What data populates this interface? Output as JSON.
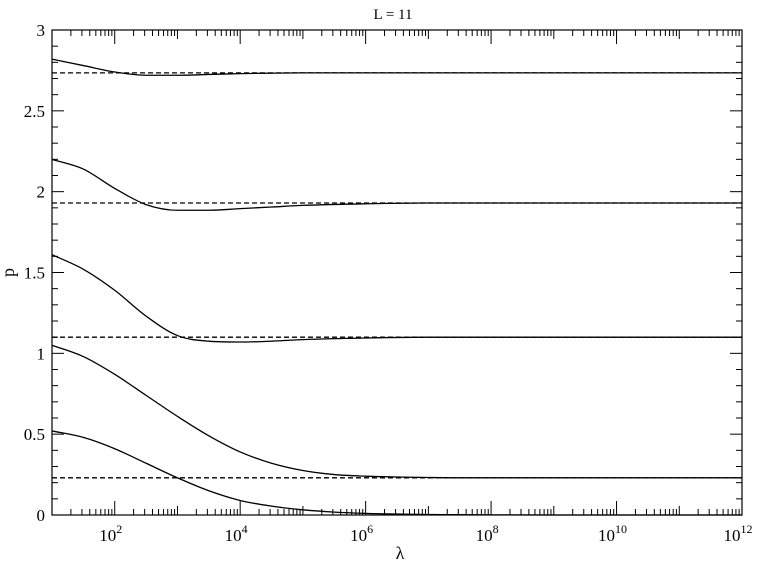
{
  "chart_data": {
    "type": "line",
    "title": "L = 11",
    "xlabel": "λ",
    "ylabel": "p",
    "xscale": "log10",
    "xlim_exponent": [
      1,
      12
    ],
    "ylim": [
      0,
      3
    ],
    "x_tick_exponents": [
      2,
      4,
      6,
      8,
      10,
      12
    ],
    "x_tick_base": "10",
    "y_ticks": [
      0,
      0.5,
      1,
      1.5,
      2,
      2.5,
      3
    ],
    "y_tick_labels": [
      "0",
      "0.5",
      "1",
      "1.5",
      "2",
      "2.5",
      "3"
    ],
    "grid": false,
    "legend": "none",
    "colors": {
      "line": "#000000",
      "background": "#ffffff"
    },
    "series": [
      {
        "style": "solid",
        "x_exponent": [
          1,
          1.5,
          2,
          2.5,
          3,
          3.5,
          4,
          4.5,
          5,
          5.5,
          6,
          6.5,
          7,
          7.5,
          8,
          9,
          10,
          11,
          12
        ],
        "values": [
          0.52,
          0.48,
          0.41,
          0.32,
          0.23,
          0.15,
          0.09,
          0.055,
          0.032,
          0.018,
          0.01,
          0.006,
          0.003,
          0.002,
          0.001,
          0,
          0,
          0,
          0
        ]
      },
      {
        "style": "solid",
        "x_exponent": [
          1,
          1.5,
          2,
          2.5,
          3,
          3.5,
          4,
          4.5,
          5,
          5.5,
          6,
          6.5,
          7,
          7.5,
          8,
          9,
          10,
          11,
          12
        ],
        "values": [
          1.05,
          0.98,
          0.87,
          0.74,
          0.61,
          0.49,
          0.39,
          0.32,
          0.275,
          0.25,
          0.24,
          0.235,
          0.232,
          0.23,
          0.23,
          0.23,
          0.23,
          0.23,
          0.23
        ]
      },
      {
        "style": "solid",
        "x_exponent": [
          1,
          1.5,
          2,
          2.5,
          3,
          3.5,
          4,
          4.5,
          5,
          6,
          7,
          8,
          9,
          10,
          11,
          12
        ],
        "values": [
          1.61,
          1.52,
          1.39,
          1.23,
          1.11,
          1.075,
          1.07,
          1.075,
          1.085,
          1.095,
          1.1,
          1.1,
          1.1,
          1.1,
          1.1,
          1.1
        ]
      },
      {
        "style": "solid",
        "x_exponent": [
          1,
          1.5,
          2,
          2.5,
          3,
          3.5,
          4,
          4.5,
          5,
          6,
          7,
          8,
          9,
          10,
          11,
          12
        ],
        "values": [
          2.2,
          2.14,
          2.02,
          1.92,
          1.885,
          1.885,
          1.895,
          1.905,
          1.915,
          1.925,
          1.93,
          1.93,
          1.93,
          1.93,
          1.93,
          1.93
        ]
      },
      {
        "style": "solid",
        "x_exponent": [
          1,
          1.5,
          2,
          2.5,
          3,
          3.5,
          4,
          5,
          6,
          7,
          8,
          9,
          10,
          11,
          12
        ],
        "values": [
          2.82,
          2.78,
          2.74,
          2.72,
          2.72,
          2.725,
          2.73,
          2.735,
          2.735,
          2.735,
          2.735,
          2.735,
          2.735,
          2.735,
          2.735
        ]
      },
      {
        "style": "dashed",
        "x_exponent": [
          1,
          12
        ],
        "values": [
          0.23,
          0.23
        ]
      },
      {
        "style": "dashed",
        "x_exponent": [
          1,
          12
        ],
        "values": [
          1.1,
          1.1
        ]
      },
      {
        "style": "dashed",
        "x_exponent": [
          1,
          12
        ],
        "values": [
          1.93,
          1.93
        ]
      },
      {
        "style": "dashed",
        "x_exponent": [
          1,
          12
        ],
        "values": [
          2.735,
          2.735
        ]
      }
    ]
  }
}
